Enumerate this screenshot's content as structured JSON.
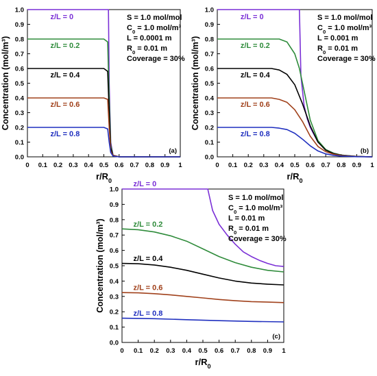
{
  "chart_data": [
    {
      "type": "line",
      "panel_label": "(a)",
      "xlabel": "r/R₀",
      "ylabel": "Concentration (mol/m³)",
      "xlim": [
        0,
        1
      ],
      "ylim": [
        0,
        1
      ],
      "x_ticks": [
        0,
        0.1,
        0.2,
        0.3,
        0.4,
        0.5,
        0.6,
        0.7,
        0.8,
        0.9,
        1
      ],
      "x_tick_labels": [
        "0",
        "0.1",
        "0.2",
        "0.3",
        "0.4",
        "0.5",
        "0.6",
        "0.7",
        "0.8",
        "0.9",
        "1"
      ],
      "y_ticks": [
        0,
        0.1,
        0.2,
        0.3,
        0.4,
        0.5,
        0.6,
        0.7,
        0.8,
        0.9,
        1
      ],
      "y_tick_labels": [
        "0.0",
        "0.1",
        "0.2",
        "0.3",
        "0.4",
        "0.5",
        "0.6",
        "0.7",
        "0.8",
        "0.9",
        "1.0"
      ],
      "grid": false,
      "annotations": [
        "S = 1.0 mol/mol",
        "C₀ = 1.0 mol/m³",
        "L = 0.0001 m",
        "R₀ = 0.01 m",
        "Coverage = 30%"
      ],
      "series": [
        {
          "name": "z/L = 0",
          "color": "#7a2fd6",
          "x": [
            0,
            0.5,
            0.53,
            0.535,
            0.545,
            0.56,
            0.6,
            1
          ],
          "y": [
            1.0,
            1.0,
            1.0,
            0.5,
            0.1,
            0.01,
            0.0,
            0.0
          ]
        },
        {
          "name": "z/L = 0.2",
          "color": "#2e8b3a",
          "x": [
            0,
            0.5,
            0.525,
            0.535,
            0.545,
            0.56,
            0.6,
            1
          ],
          "y": [
            0.8,
            0.8,
            0.78,
            0.4,
            0.08,
            0.01,
            0.0,
            0.0
          ]
        },
        {
          "name": "z/L = 0.4",
          "color": "#000000",
          "x": [
            0,
            0.5,
            0.525,
            0.535,
            0.545,
            0.56,
            0.6,
            1
          ],
          "y": [
            0.6,
            0.6,
            0.58,
            0.3,
            0.06,
            0.01,
            0.0,
            0.0
          ]
        },
        {
          "name": "z/L = 0.6",
          "color": "#a0401a",
          "x": [
            0,
            0.5,
            0.525,
            0.535,
            0.545,
            0.56,
            0.6,
            1
          ],
          "y": [
            0.4,
            0.4,
            0.39,
            0.2,
            0.04,
            0.01,
            0.0,
            0.0
          ]
        },
        {
          "name": "z/L = 0.8",
          "color": "#1f2fbf",
          "x": [
            0,
            0.5,
            0.525,
            0.535,
            0.545,
            0.56,
            0.6,
            1
          ],
          "y": [
            0.2,
            0.2,
            0.19,
            0.1,
            0.03,
            0.005,
            0.0,
            0.0
          ]
        }
      ]
    },
    {
      "type": "line",
      "panel_label": "(b)",
      "xlabel": "r/R₀",
      "ylabel": "Concentration (mol/m³)",
      "xlim": [
        0,
        1
      ],
      "ylim": [
        0,
        1
      ],
      "x_ticks": [
        0,
        0.1,
        0.2,
        0.3,
        0.4,
        0.5,
        0.6,
        0.7,
        0.8,
        0.9,
        1
      ],
      "x_tick_labels": [
        "0",
        "0.1",
        "0.2",
        "0.3",
        "0.4",
        "0.5",
        "0.6",
        "0.7",
        "0.8",
        "0.9",
        "1"
      ],
      "y_ticks": [
        0,
        0.1,
        0.2,
        0.3,
        0.4,
        0.5,
        0.6,
        0.7,
        0.8,
        0.9,
        1
      ],
      "y_tick_labels": [
        "0.0",
        "0.1",
        "0.2",
        "0.3",
        "0.4",
        "0.5",
        "0.6",
        "0.7",
        "0.8",
        "0.9",
        "1.0"
      ],
      "grid": false,
      "annotations": [
        "S = 1.0 mol/mol",
        "C₀ = 1.0 mol/m³",
        "L = 0.001 m",
        "R₀ = 0.01 m",
        "Coverage = 30%"
      ],
      "series": [
        {
          "name": "z/L = 0",
          "color": "#7a2fd6",
          "x": [
            0,
            0.53,
            0.54,
            0.56,
            0.58,
            0.6,
            0.65,
            0.7,
            0.75,
            0.8,
            0.9,
            1
          ],
          "y": [
            1.0,
            1.0,
            0.55,
            0.35,
            0.26,
            0.2,
            0.1,
            0.05,
            0.025,
            0.012,
            0.003,
            0.0
          ]
        },
        {
          "name": "z/L = 0.2",
          "color": "#2e8b3a",
          "x": [
            0,
            0.4,
            0.45,
            0.5,
            0.53,
            0.56,
            0.6,
            0.65,
            0.7,
            0.75,
            0.8,
            0.9,
            1
          ],
          "y": [
            0.8,
            0.8,
            0.78,
            0.7,
            0.6,
            0.45,
            0.25,
            0.11,
            0.05,
            0.025,
            0.012,
            0.003,
            0.0
          ]
        },
        {
          "name": "z/L = 0.4",
          "color": "#000000",
          "x": [
            0,
            0.35,
            0.4,
            0.45,
            0.5,
            0.55,
            0.6,
            0.65,
            0.7,
            0.75,
            0.8,
            0.9,
            1
          ],
          "y": [
            0.6,
            0.6,
            0.59,
            0.56,
            0.49,
            0.36,
            0.21,
            0.1,
            0.045,
            0.022,
            0.01,
            0.003,
            0.0
          ]
        },
        {
          "name": "z/L = 0.6",
          "color": "#a0401a",
          "x": [
            0,
            0.35,
            0.4,
            0.45,
            0.5,
            0.55,
            0.6,
            0.65,
            0.7,
            0.75,
            0.8,
            0.9,
            1
          ],
          "y": [
            0.4,
            0.4,
            0.39,
            0.37,
            0.32,
            0.24,
            0.14,
            0.07,
            0.035,
            0.018,
            0.009,
            0.002,
            0.0
          ]
        },
        {
          "name": "z/L = 0.8",
          "color": "#1f2fbf",
          "x": [
            0,
            0.35,
            0.4,
            0.45,
            0.5,
            0.55,
            0.6,
            0.65,
            0.7,
            0.75,
            0.8,
            0.9,
            1
          ],
          "y": [
            0.2,
            0.2,
            0.195,
            0.185,
            0.16,
            0.12,
            0.075,
            0.04,
            0.02,
            0.01,
            0.005,
            0.001,
            0.0
          ]
        }
      ]
    },
    {
      "type": "line",
      "panel_label": "(c)",
      "xlabel": "r/R₀",
      "ylabel": "Concentration (mol/m³)",
      "xlim": [
        0,
        1
      ],
      "ylim": [
        0,
        1
      ],
      "x_ticks": [
        0,
        0.1,
        0.2,
        0.3,
        0.4,
        0.5,
        0.6,
        0.7,
        0.8,
        0.9,
        1
      ],
      "x_tick_labels": [
        "0",
        "0.1",
        "0.2",
        "0.3",
        "0.4",
        "0.5",
        "0.6",
        "0.7",
        "0.8",
        "0.9",
        "1"
      ],
      "y_ticks": [
        0,
        0.1,
        0.2,
        0.3,
        0.4,
        0.5,
        0.6,
        0.7,
        0.8,
        0.9,
        1
      ],
      "y_tick_labels": [
        "0.0",
        "0.1",
        "0.2",
        "0.3",
        "0.4",
        "0.5",
        "0.6",
        "0.7",
        "0.8",
        "0.9",
        "1.0"
      ],
      "grid": false,
      "annotations": [
        "S = 1.0 mol/mol",
        "C₀ = 1.0 mol/m³",
        "L = 0.01 m",
        "R₀ = 0.01 m",
        "Coverage = 30%"
      ],
      "series": [
        {
          "name": "z/L = 0",
          "color": "#7a2fd6",
          "x": [
            0,
            0.53,
            0.56,
            0.6,
            0.65,
            0.7,
            0.75,
            0.8,
            0.85,
            0.9,
            0.95,
            1
          ],
          "y": [
            1.0,
            1.0,
            0.86,
            0.77,
            0.7,
            0.64,
            0.59,
            0.56,
            0.535,
            0.515,
            0.5,
            0.495
          ]
        },
        {
          "name": "z/L = 0.2",
          "color": "#2e8b3a",
          "x": [
            0,
            0.1,
            0.2,
            0.3,
            0.4,
            0.5,
            0.6,
            0.7,
            0.8,
            0.9,
            1
          ],
          "y": [
            0.74,
            0.735,
            0.72,
            0.695,
            0.66,
            0.61,
            0.56,
            0.52,
            0.49,
            0.47,
            0.46
          ]
        },
        {
          "name": "z/L = 0.4",
          "color": "#000000",
          "x": [
            0,
            0.1,
            0.2,
            0.3,
            0.4,
            0.5,
            0.6,
            0.7,
            0.8,
            0.9,
            1
          ],
          "y": [
            0.515,
            0.513,
            0.505,
            0.49,
            0.47,
            0.445,
            0.42,
            0.4,
            0.387,
            0.38,
            0.375
          ]
        },
        {
          "name": "z/L = 0.6",
          "color": "#a0401a",
          "x": [
            0,
            0.1,
            0.2,
            0.3,
            0.4,
            0.5,
            0.6,
            0.7,
            0.8,
            0.9,
            1
          ],
          "y": [
            0.325,
            0.323,
            0.318,
            0.31,
            0.3,
            0.29,
            0.28,
            0.272,
            0.266,
            0.263,
            0.26
          ]
        },
        {
          "name": "z/L = 0.8",
          "color": "#1f2fbf",
          "x": [
            0,
            0.2,
            0.4,
            0.6,
            0.8,
            1
          ],
          "y": [
            0.158,
            0.155,
            0.148,
            0.142,
            0.137,
            0.134
          ]
        }
      ]
    }
  ]
}
